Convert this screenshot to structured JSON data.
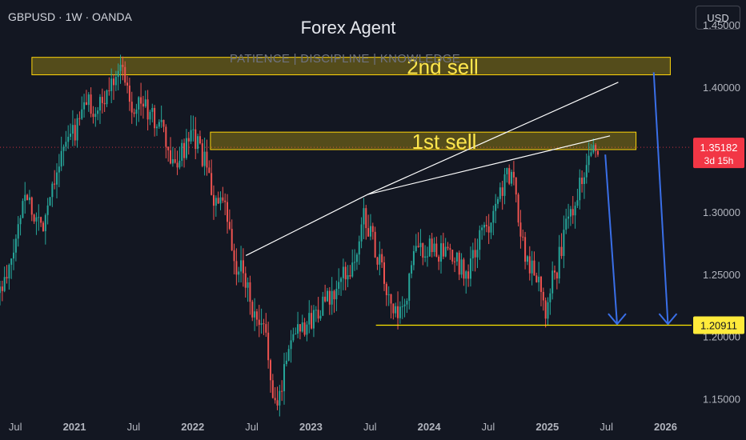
{
  "header": {
    "symbol_line": "GBPUSD · 1W · OANDA"
  },
  "currency_button": "USD",
  "watermark": {
    "title": "Forex Agent",
    "subtitle": "PATIENCE | DISCIPLINE | KNOWLEDGE"
  },
  "colors": {
    "background": "#131722",
    "up": "#26a69a",
    "down": "#ef5350",
    "zone_fill": "#FFD60A",
    "zone_text": "#FFE74D",
    "support": "#FFE600",
    "arrow": "#3A6FE8",
    "trendline": "#FFFFFF",
    "price_tag": "#F23645",
    "support_tag": "#FFEB3B"
  },
  "chart_data": {
    "type": "candlestick",
    "symbol": "GBPUSD",
    "interval": "1W",
    "source": "OANDA",
    "y_axis": {
      "min": 1.135,
      "max": 1.47,
      "ticks": [
        {
          "value": 1.45,
          "label": "1.45000"
        },
        {
          "value": 1.4,
          "label": "1.40000"
        },
        {
          "value": 1.3,
          "label": "1.30000"
        },
        {
          "value": 1.25,
          "label": "1.25000"
        },
        {
          "value": 1.2,
          "label": "1.20000"
        },
        {
          "value": 1.15,
          "label": "1.15000"
        }
      ]
    },
    "x_axis": {
      "start": 2020.37,
      "end": 2026.22,
      "ticks": [
        {
          "t": 2020.5,
          "label": "Jul",
          "bold": false
        },
        {
          "t": 2021.0,
          "label": "2021",
          "bold": true
        },
        {
          "t": 2021.5,
          "label": "Jul",
          "bold": false
        },
        {
          "t": 2022.0,
          "label": "2022",
          "bold": true
        },
        {
          "t": 2022.5,
          "label": "Jul",
          "bold": false
        },
        {
          "t": 2023.0,
          "label": "2023",
          "bold": true
        },
        {
          "t": 2023.5,
          "label": "Jul",
          "bold": false
        },
        {
          "t": 2024.0,
          "label": "2024",
          "bold": true
        },
        {
          "t": 2024.5,
          "label": "Jul",
          "bold": false
        },
        {
          "t": 2025.0,
          "label": "2025",
          "bold": true
        },
        {
          "t": 2025.5,
          "label": "Jul",
          "bold": false
        },
        {
          "t": 2026.0,
          "label": "2026",
          "bold": true
        }
      ]
    },
    "price_path": [
      [
        2020.37,
        1.235
      ],
      [
        2020.45,
        1.245
      ],
      [
        2020.52,
        1.275
      ],
      [
        2020.6,
        1.32
      ],
      [
        2020.68,
        1.295
      ],
      [
        2020.75,
        1.29
      ],
      [
        2020.85,
        1.33
      ],
      [
        2020.95,
        1.355
      ],
      [
        2021.05,
        1.37
      ],
      [
        2021.12,
        1.39
      ],
      [
        2021.2,
        1.38
      ],
      [
        2021.28,
        1.39
      ],
      [
        2021.38,
        1.418
      ],
      [
        2021.45,
        1.41
      ],
      [
        2021.5,
        1.385
      ],
      [
        2021.58,
        1.39
      ],
      [
        2021.67,
        1.375
      ],
      [
        2021.75,
        1.37
      ],
      [
        2021.85,
        1.335
      ],
      [
        2021.95,
        1.35
      ],
      [
        2022.03,
        1.36
      ],
      [
        2022.12,
        1.34
      ],
      [
        2022.2,
        1.31
      ],
      [
        2022.3,
        1.3
      ],
      [
        2022.38,
        1.25
      ],
      [
        2022.45,
        1.255
      ],
      [
        2022.55,
        1.21
      ],
      [
        2022.65,
        1.2
      ],
      [
        2022.7,
        1.14
      ],
      [
        2022.75,
        1.15
      ],
      [
        2022.82,
        1.19
      ],
      [
        2022.9,
        1.21
      ],
      [
        2023.0,
        1.21
      ],
      [
        2023.1,
        1.225
      ],
      [
        2023.2,
        1.23
      ],
      [
        2023.3,
        1.25
      ],
      [
        2023.4,
        1.26
      ],
      [
        2023.47,
        1.3
      ],
      [
        2023.53,
        1.28
      ],
      [
        2023.6,
        1.26
      ],
      [
        2023.7,
        1.22
      ],
      [
        2023.8,
        1.215
      ],
      [
        2023.88,
        1.265
      ],
      [
        2023.95,
        1.27
      ],
      [
        2024.05,
        1.27
      ],
      [
        2024.15,
        1.265
      ],
      [
        2024.25,
        1.26
      ],
      [
        2024.35,
        1.25
      ],
      [
        2024.45,
        1.28
      ],
      [
        2024.52,
        1.29
      ],
      [
        2024.58,
        1.31
      ],
      [
        2024.66,
        1.325
      ],
      [
        2024.72,
        1.33
      ],
      [
        2024.77,
        1.3
      ],
      [
        2024.82,
        1.27
      ],
      [
        2024.88,
        1.255
      ],
      [
        2024.95,
        1.25
      ],
      [
        2025.0,
        1.22
      ],
      [
        2025.03,
        1.24
      ],
      [
        2025.1,
        1.255
      ],
      [
        2025.18,
        1.29
      ],
      [
        2025.25,
        1.31
      ],
      [
        2025.32,
        1.33
      ],
      [
        2025.38,
        1.355
      ],
      [
        2025.43,
        1.352
      ]
    ],
    "annotations": {
      "zones": [
        {
          "label": "2nd sell",
          "t0": 2020.64,
          "t1": 2026.04,
          "y_top": 1.424,
          "y_bottom": 1.41
        },
        {
          "label": "1st sell",
          "t0": 2022.15,
          "t1": 2025.75,
          "y_top": 1.364,
          "y_bottom": 1.35
        }
      ],
      "support": {
        "t0": 2023.55,
        "t1": 2026.22,
        "value": 1.20911
      },
      "trendlines": [
        {
          "points": [
            [
              2022.45,
              1.265
            ],
            [
              2023.48,
              1.314
            ],
            [
              2025.6,
              1.404
            ]
          ]
        },
        {
          "points": [
            [
              2023.48,
              1.314
            ],
            [
              2025.53,
              1.361
            ]
          ]
        }
      ],
      "arrows": [
        {
          "from": [
            2025.49,
            1.346
          ],
          "to": [
            2025.59,
            1.21
          ]
        },
        {
          "from": [
            2025.9,
            1.412
          ],
          "to": [
            2026.02,
            1.21
          ]
        }
      ]
    },
    "current_price": {
      "value": 1.35182,
      "label": "1.35182",
      "countdown": "3d 15h"
    },
    "support_label": "1.20911"
  }
}
